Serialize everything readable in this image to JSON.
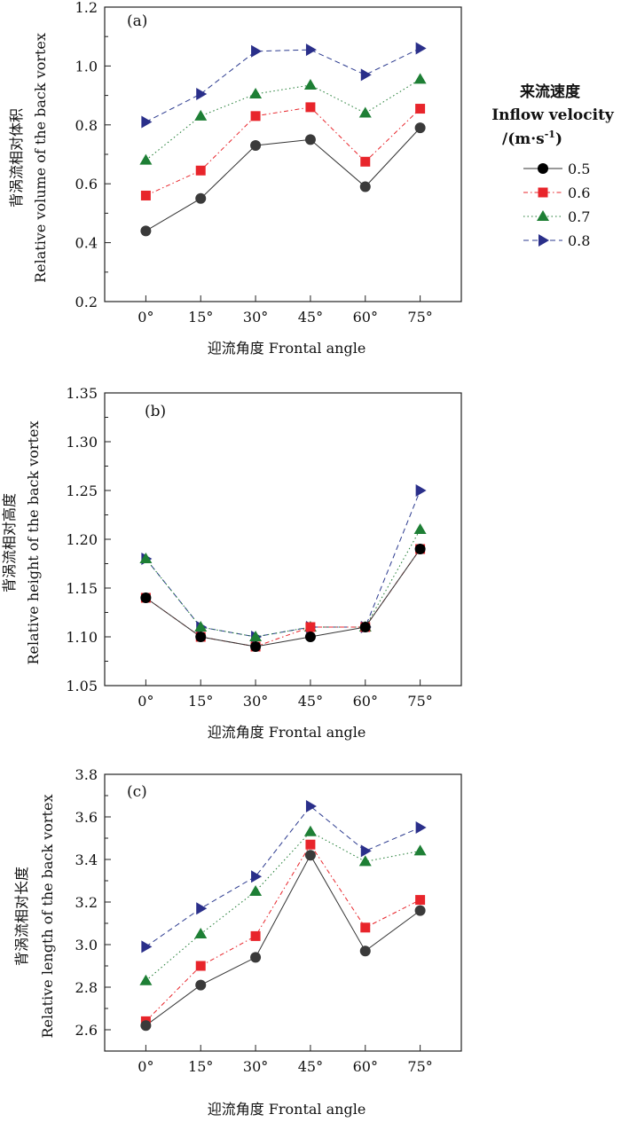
{
  "legend": {
    "title_cn": "来流速度",
    "title_en": "Inflow velocity",
    "title_unit": "/(m·s",
    "title_unit_sup": "-1",
    "title_unit_close": ")",
    "entries": [
      "0.5",
      "0.6",
      "0.7",
      "0.8"
    ]
  },
  "chart_data": [
    {
      "type": "line",
      "panel_label": "(a)",
      "categories": [
        "0°",
        "15°",
        "30°",
        "45°",
        "60°",
        "75°"
      ],
      "xlabel": "迎流角度 Frontal angle",
      "ylabel_cn": "背涡流相对体积",
      "ylabel_en": "Relative volume of the back vortex",
      "ylim": [
        0.2,
        1.2
      ],
      "yticks": [
        "0.2",
        "0.4",
        "0.6",
        "0.8",
        "1.0",
        "1.2"
      ],
      "series": [
        {
          "name": "0.5",
          "values": [
            0.44,
            0.55,
            0.73,
            0.75,
            0.59,
            0.79
          ]
        },
        {
          "name": "0.6",
          "values": [
            0.56,
            0.645,
            0.83,
            0.86,
            0.675,
            0.855
          ]
        },
        {
          "name": "0.7",
          "values": [
            0.68,
            0.83,
            0.905,
            0.935,
            0.84,
            0.955
          ]
        },
        {
          "name": "0.8",
          "values": [
            0.81,
            0.905,
            1.05,
            1.055,
            0.97,
            1.06
          ]
        }
      ]
    },
    {
      "type": "line",
      "panel_label": "(b)",
      "categories": [
        "0°",
        "15°",
        "30°",
        "45°",
        "60°",
        "75°"
      ],
      "xlabel": "迎流角度 Frontal angle",
      "ylabel_cn": "背涡流相对高度",
      "ylabel_en": "Relative height of the back vortex",
      "ylim": [
        1.05,
        1.35
      ],
      "yticks": [
        "1.05",
        "1.10",
        "1.15",
        "1.20",
        "1.25",
        "1.30",
        "1.35"
      ],
      "series": [
        {
          "name": "0.5",
          "values": [
            1.14,
            1.1,
            1.09,
            1.1,
            1.11,
            1.19
          ]
        },
        {
          "name": "0.6",
          "values": [
            1.14,
            1.1,
            1.09,
            1.11,
            1.11,
            1.19
          ]
        },
        {
          "name": "0.7",
          "values": [
            1.18,
            1.11,
            1.1,
            1.11,
            1.11,
            1.21
          ]
        },
        {
          "name": "0.8",
          "values": [
            1.18,
            1.11,
            1.1,
            1.11,
            1.11,
            1.25
          ]
        }
      ]
    },
    {
      "type": "line",
      "panel_label": "(c)",
      "categories": [
        "0°",
        "15°",
        "30°",
        "45°",
        "60°",
        "75°"
      ],
      "xlabel": "迎流角度 Frontal angle",
      "ylabel_cn": "背涡流相对长度",
      "ylabel_en": "Relative length of the back vortex",
      "ylim": [
        2.5,
        3.8
      ],
      "yticks": [
        "2.6",
        "2.8",
        "3.0",
        "3.2",
        "3.4",
        "3.6",
        "3.8"
      ],
      "series": [
        {
          "name": "0.5",
          "values": [
            2.62,
            2.81,
            2.94,
            3.42,
            2.97,
            3.16
          ]
        },
        {
          "name": "0.6",
          "values": [
            2.64,
            2.9,
            3.04,
            3.47,
            3.08,
            3.21
          ]
        },
        {
          "name": "0.7",
          "values": [
            2.83,
            3.05,
            3.25,
            3.53,
            3.39,
            3.44
          ]
        },
        {
          "name": "0.8",
          "values": [
            2.99,
            3.17,
            3.32,
            3.65,
            3.44,
            3.55
          ]
        }
      ]
    }
  ],
  "styles": {
    "series_colors": [
      "#333333",
      "#e8252b",
      "#1c7a30",
      "#2b3a8f"
    ],
    "marker_colors": [
      "#3a3a3a",
      "#e8252b",
      "#1e7f35",
      "#2a2f8a"
    ],
    "panel_b_marker0": "#000000"
  }
}
